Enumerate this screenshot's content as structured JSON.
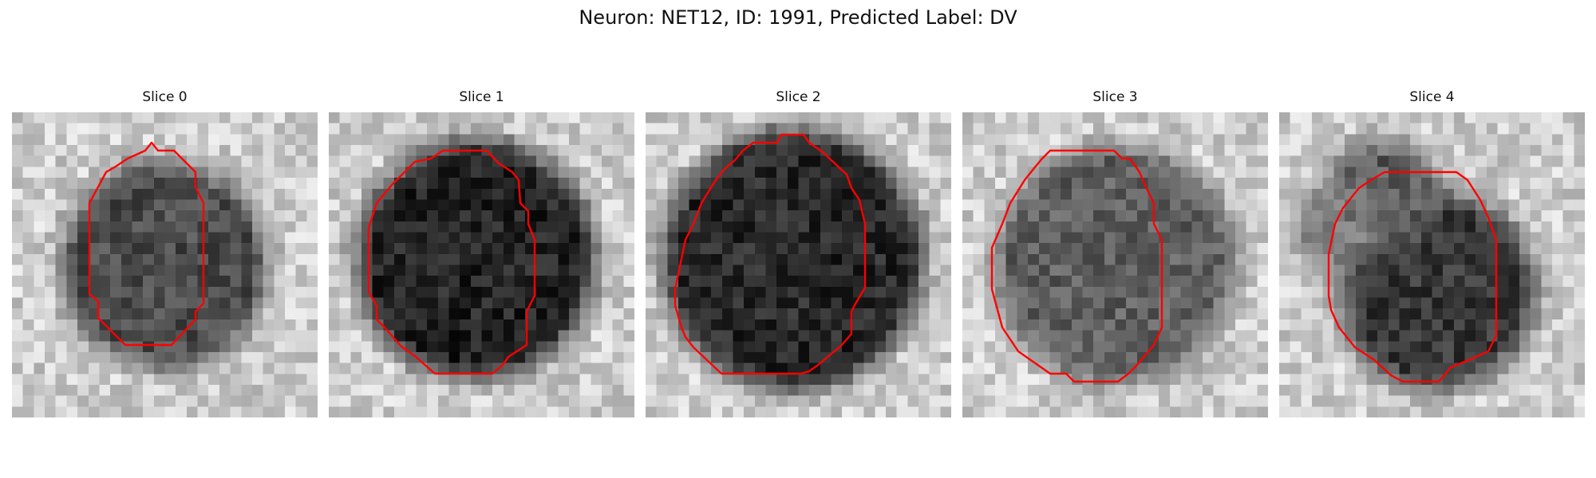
{
  "figure": {
    "title": "Neuron: NET12, ID: 1991, Predicted Label: DV",
    "contour_color": "#ff0000",
    "colormap": "gray",
    "slices": [
      {
        "label": "Slice 0"
      },
      {
        "label": "Slice 1"
      },
      {
        "label": "Slice 2"
      },
      {
        "label": "Slice 3"
      },
      {
        "label": "Slice 4"
      }
    ]
  }
}
